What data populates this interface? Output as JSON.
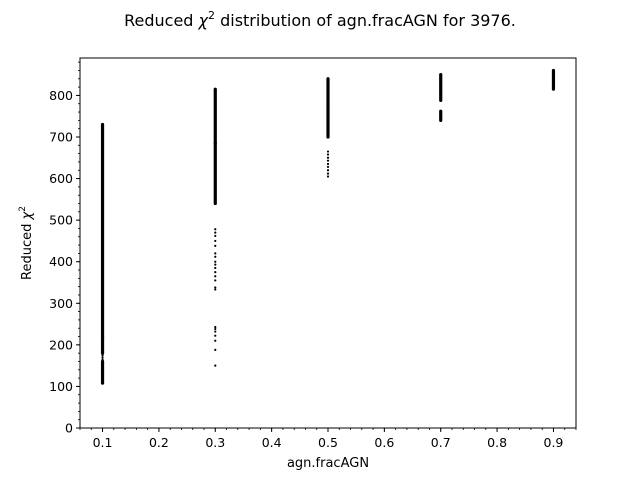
{
  "chart_data": {
    "type": "scatter",
    "title_prefix": "Reduced ",
    "title_symbol": "χ",
    "title_sup": "2",
    "title_suffix": " distribution of agn.fracAGN for 3976.",
    "xlabel": "agn.fracAGN",
    "ylabel_prefix": "Reduced ",
    "ylabel_symbol": "χ",
    "ylabel_sup": "2",
    "xlim": [
      0.06,
      0.94
    ],
    "ylim": [
      0,
      890
    ],
    "x_ticks": [
      "0.1",
      "0.2",
      "0.3",
      "0.4",
      "0.5",
      "0.6",
      "0.7",
      "0.8",
      "0.9"
    ],
    "y_ticks": [
      "0",
      "100",
      "200",
      "300",
      "400",
      "500",
      "600",
      "700",
      "800"
    ],
    "grid": false,
    "marker_color": "#000000",
    "series": [
      {
        "x": 0.1,
        "segments": [
          [
            218,
            730
          ],
          [
            180,
            218
          ],
          [
            108,
            160
          ]
        ],
        "scatter": [
          165,
          170,
          175,
          178,
          162,
          123,
          130,
          138
        ]
      },
      {
        "x": 0.3,
        "segments": [
          [
            685,
            815
          ],
          [
            540,
            685
          ]
        ],
        "scatter": [
          150,
          188,
          210,
          222,
          232,
          238,
          243,
          333,
          338,
          355,
          365,
          375,
          385,
          393,
          400,
          412,
          420,
          438,
          450,
          462,
          470,
          478
        ]
      },
      {
        "x": 0.5,
        "segments": [
          [
            760,
            840
          ],
          [
            700,
            760
          ]
        ],
        "scatter": [
          605,
          612,
          620,
          628,
          635,
          643,
          650,
          658,
          665
        ]
      },
      {
        "x": 0.7,
        "segments": [
          [
            788,
            850
          ],
          [
            740,
            762
          ]
        ],
        "scatter": []
      },
      {
        "x": 0.9,
        "segments": [
          [
            815,
            860
          ]
        ],
        "scatter": []
      }
    ]
  }
}
